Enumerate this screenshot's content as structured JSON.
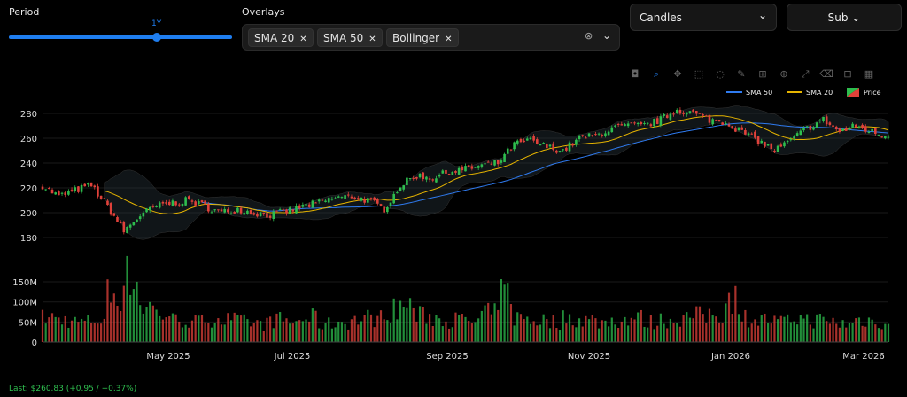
{
  "controls": {
    "period_label": "Period",
    "period_value": "1Y",
    "period_fraction": 0.67,
    "overlays_label": "Overlays",
    "overlays": [
      "SMA 20",
      "SMA 50",
      "Bollinger"
    ],
    "chart_type": "Candles",
    "sub_button": "Sub"
  },
  "footer": {
    "last": "Last: $260.83 (+0.95 / +0.37%)"
  },
  "colors": {
    "up": "#2ebd4e",
    "down": "#e0413a",
    "sma20": "#e6b400",
    "sma50": "#2f7bf0",
    "accent": "#1f7ef0"
  },
  "modebar": [
    "camera-icon",
    "zoom-icon",
    "pan-icon",
    "box-select-icon",
    "lasso-icon",
    "draw-icon",
    "zoom-in-icon",
    "zoom-out-icon",
    "autoscale-icon",
    "reset-icon",
    "fullscreen-icon",
    "plotly-logo-icon"
  ],
  "chart_data": {
    "type": "candlestick",
    "legend": [
      "SMA 50",
      "SMA 20",
      "Price"
    ],
    "legend_placement": "top-right",
    "x_ticks": [
      "May 2025",
      "Jul 2025",
      "Sep 2025",
      "Nov 2025",
      "Jan 2026",
      "Mar 2026"
    ],
    "price_ticks": [
      180,
      200,
      220,
      240,
      260,
      280
    ],
    "price_range": [
      170,
      290
    ],
    "volume_ticks": [
      "0",
      "50M",
      "100M",
      "150M"
    ],
    "volume_range_M": [
      0,
      160
    ],
    "weekly_close": [
      222,
      213,
      218,
      222,
      205,
      185,
      198,
      205,
      208,
      210,
      205,
      200,
      203,
      200,
      198,
      201,
      205,
      208,
      212,
      213,
      210,
      203,
      222,
      230,
      228,
      233,
      235,
      238,
      240,
      255,
      258,
      253,
      250,
      260,
      262,
      268,
      270,
      270,
      275,
      283,
      280,
      275,
      273,
      265,
      258,
      250,
      258,
      268,
      275,
      265,
      270,
      265,
      261
    ],
    "weekly_volume_M": [
      60,
      55,
      50,
      55,
      120,
      160,
      90,
      70,
      55,
      50,
      60,
      55,
      50,
      45,
      55,
      50,
      60,
      45,
      50,
      55,
      60,
      80,
      90,
      65,
      60,
      55,
      50,
      70,
      120,
      60,
      55,
      50,
      60,
      55,
      50,
      55,
      60,
      50,
      55,
      60,
      65,
      70,
      110,
      60,
      55,
      50,
      60,
      55,
      50,
      45,
      55,
      50,
      45
    ]
  }
}
